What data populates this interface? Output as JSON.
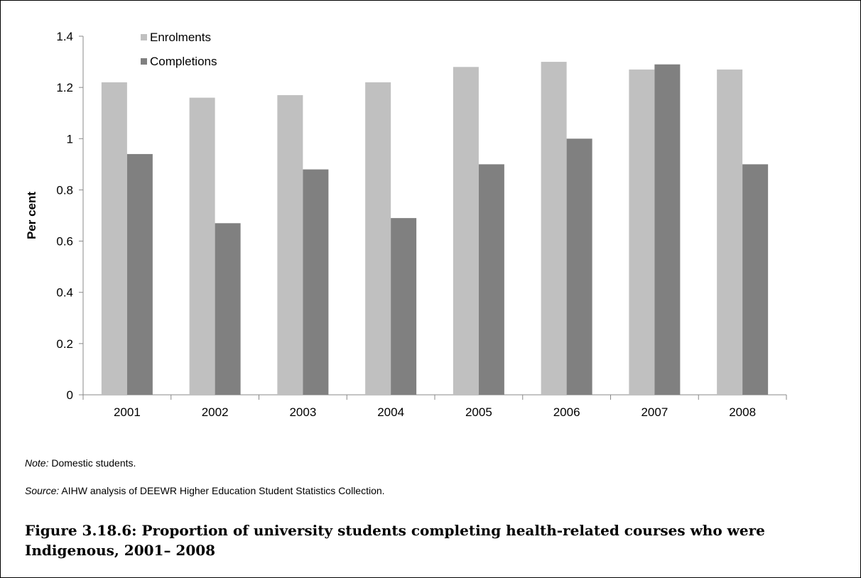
{
  "chart_data": {
    "type": "bar",
    "categories": [
      "2001",
      "2002",
      "2003",
      "2004",
      "2005",
      "2006",
      "2007",
      "2008"
    ],
    "series": [
      {
        "name": "Enrolments",
        "values": [
          1.22,
          1.16,
          1.17,
          1.22,
          1.28,
          1.3,
          1.27,
          1.27
        ],
        "color": "#c0c0c0"
      },
      {
        "name": "Completions",
        "values": [
          0.94,
          0.67,
          0.88,
          0.69,
          0.9,
          1.0,
          1.29,
          0.9
        ],
        "color": "#808080"
      }
    ],
    "ylabel": "Per cent",
    "xlabel": "",
    "ylim": [
      0,
      1.4
    ],
    "yticks": [
      0,
      0.2,
      0.4,
      0.6,
      0.8,
      1,
      1.2,
      1.4
    ],
    "ytick_labels": [
      "0",
      "0.2",
      "0.4",
      "0.6",
      "0.8",
      "1",
      "1.2",
      "1.4"
    ],
    "grid": false,
    "legend": "top-left"
  },
  "note": {
    "label": "Note:",
    "text": "Domestic students."
  },
  "source": {
    "label": "Source:",
    "text": "AIHW analysis of DEEWR Higher Education Student Statistics Collection."
  },
  "caption": "Figure 3.18.6: Proportion of university students completing health-related courses who were Indigenous, 2001– 2008"
}
